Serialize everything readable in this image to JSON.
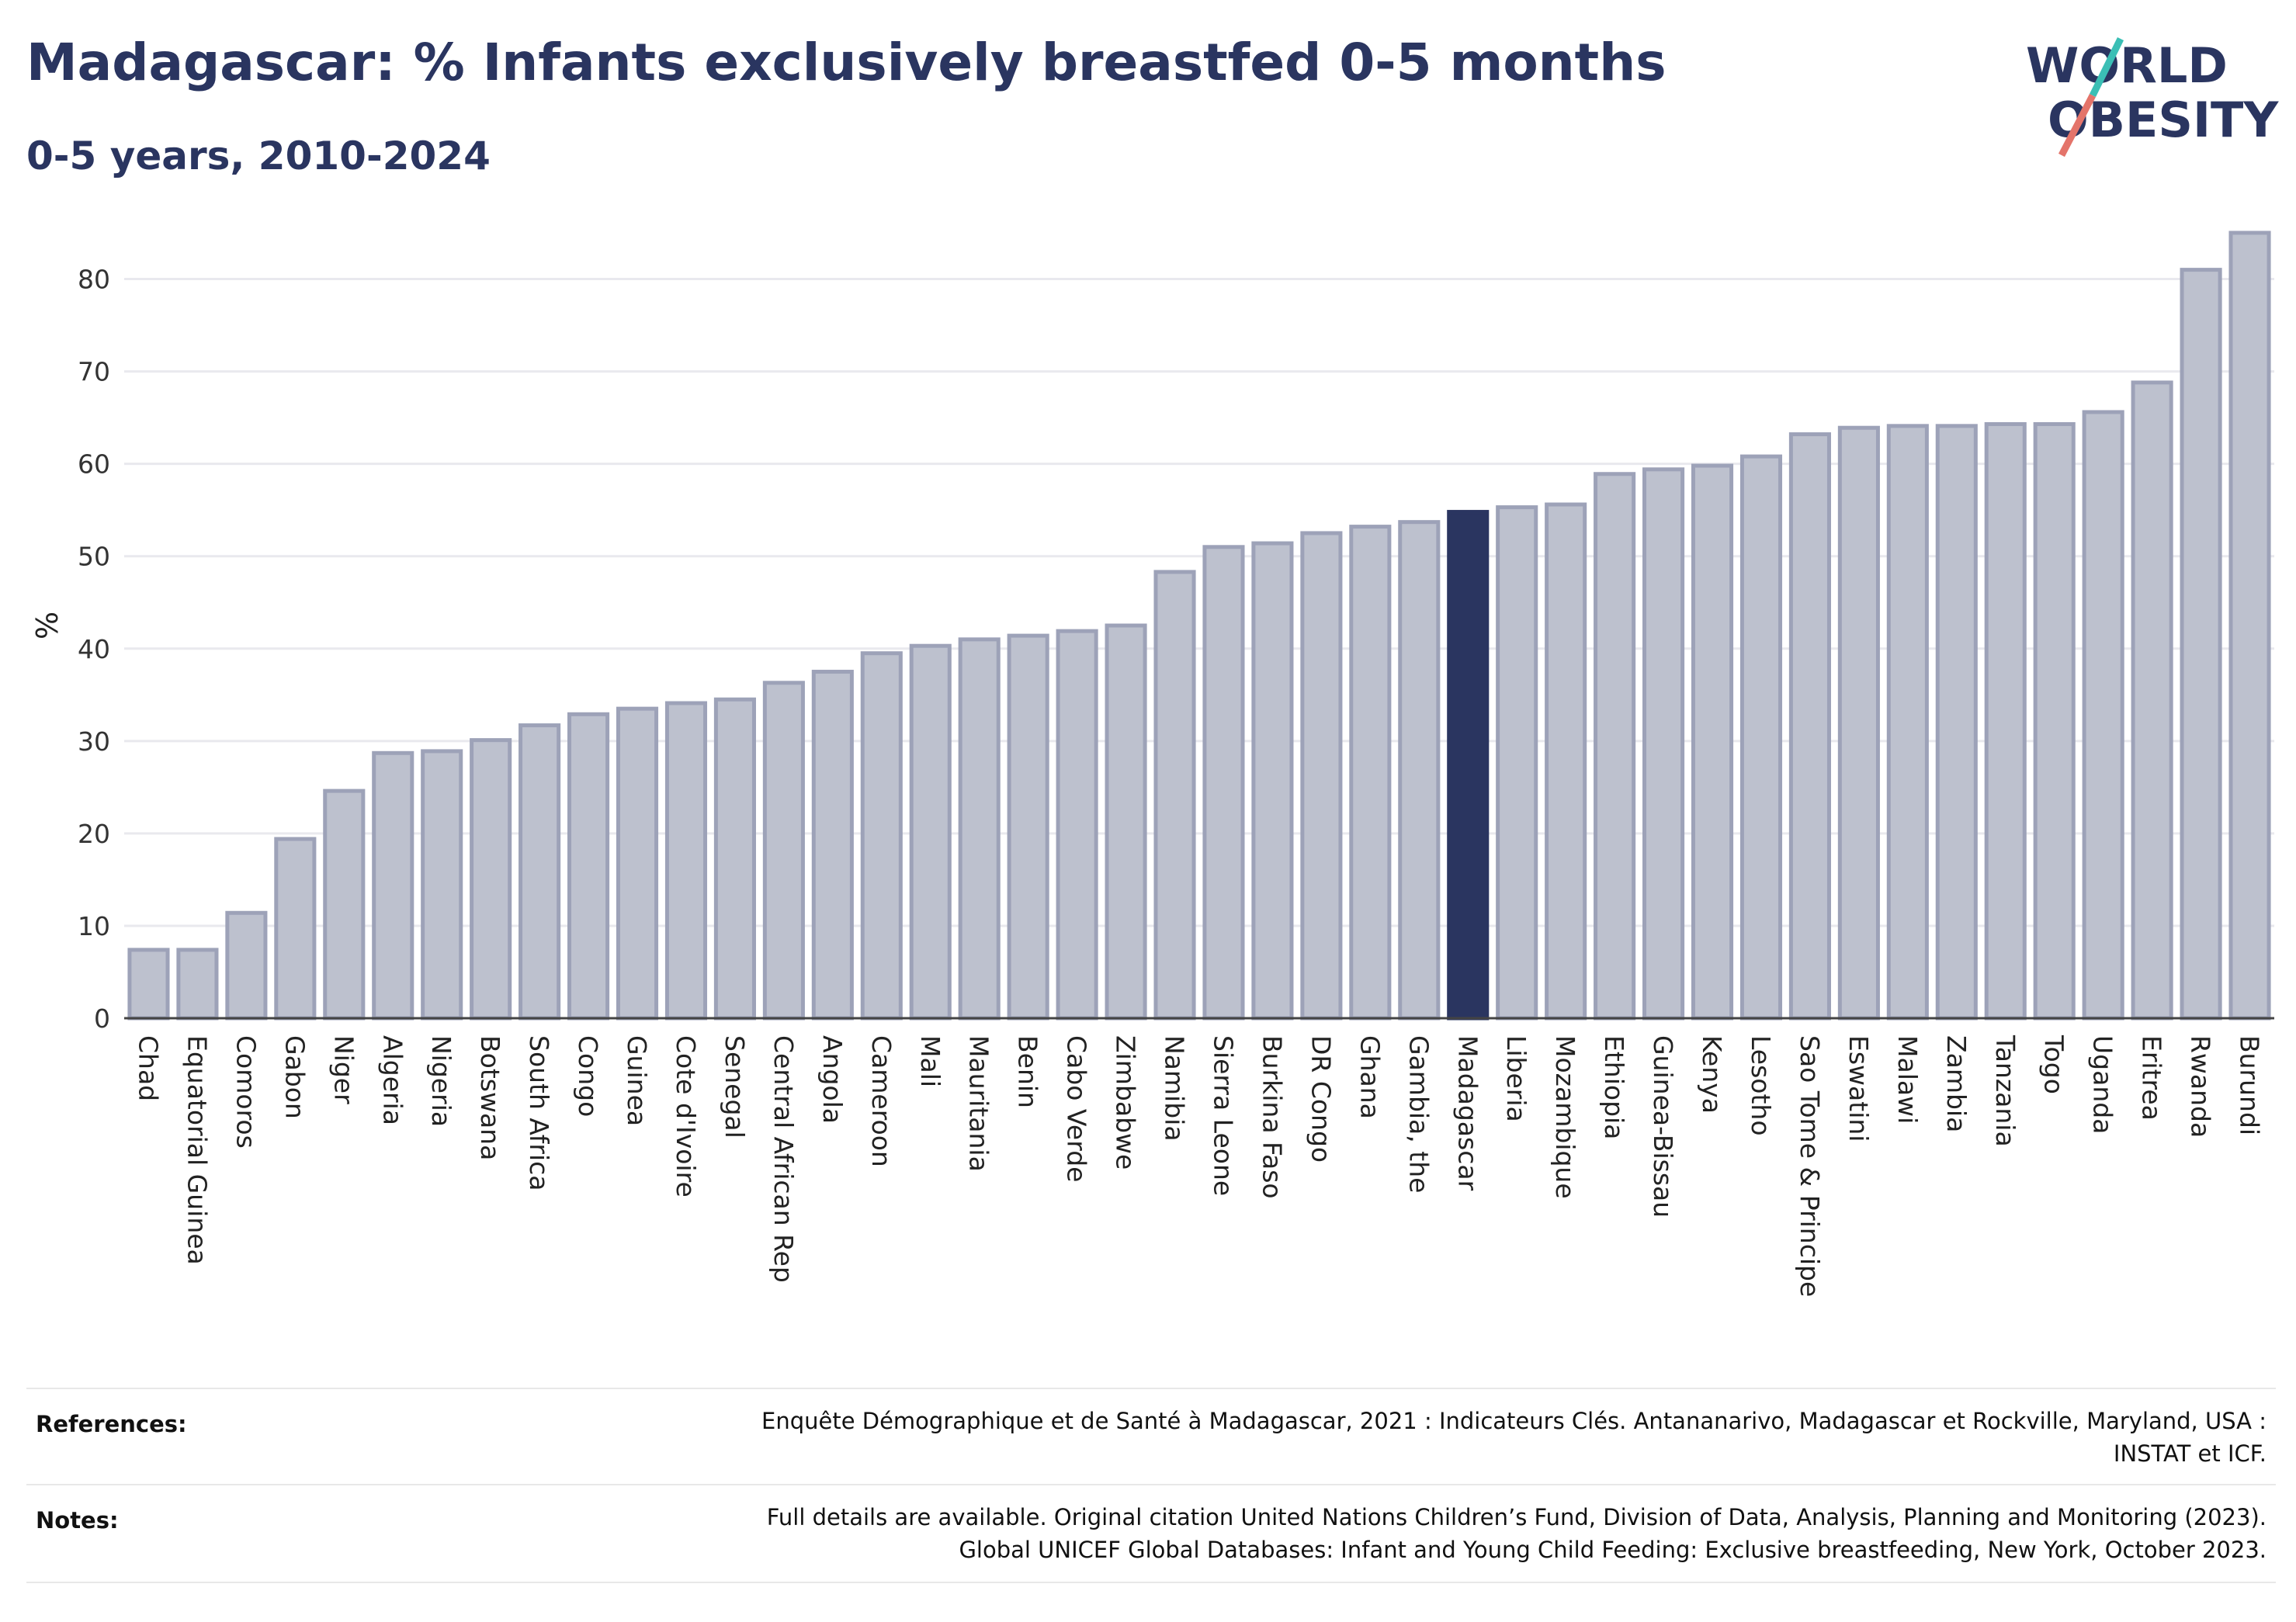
{
  "header": {
    "title": "Madagascar: % Infants exclusively breastfed 0-5 months",
    "subtitle": "0-5 years, 2010-2024"
  },
  "logo": {
    "line1": "WORLD",
    "line2": "OBESITY",
    "accent_teal": "#3bbfb5",
    "accent_red": "#e4746a",
    "text_color": "#2a3560"
  },
  "chart_data": {
    "type": "bar",
    "ylabel": "%",
    "ylim": [
      0,
      85
    ],
    "yticks": [
      0,
      10,
      20,
      30,
      40,
      50,
      60,
      70,
      80
    ],
    "grid": true,
    "highlight": "Madagascar",
    "colors": {
      "bar": "#bdc1ce",
      "bar_edge": "#9da2b8",
      "highlight": "#2a3560"
    },
    "categories": [
      "Chad",
      "Equatorial Guinea",
      "Comoros",
      "Gabon",
      "Niger",
      "Algeria",
      "Nigeria",
      "Botswana",
      "South Africa",
      "Congo",
      "Guinea",
      "Cote d'Ivoire",
      "Senegal",
      "Central African Rep",
      "Angola",
      "Cameroon",
      "Mali",
      "Mauritania",
      "Benin",
      "Cabo Verde",
      "Zimbabwe",
      "Namibia",
      "Sierra Leone",
      "Burkina Faso",
      "DR Congo",
      "Ghana",
      "Gambia, the",
      "Madagascar",
      "Liberia",
      "Mozambique",
      "Ethiopia",
      "Guinea-Bissau",
      "Kenya",
      "Lesotho",
      "Sao Tome & Principe",
      "Eswatini",
      "Malawi",
      "Zambia",
      "Tanzania",
      "Togo",
      "Uganda",
      "Eritrea",
      "Rwanda",
      "Burundi"
    ],
    "values": [
      7.4,
      7.4,
      11.4,
      19.4,
      24.6,
      28.7,
      28.9,
      30.1,
      31.7,
      32.9,
      33.5,
      34.1,
      34.5,
      36.3,
      37.5,
      39.5,
      40.3,
      41.0,
      41.4,
      41.9,
      42.5,
      48.3,
      51.0,
      51.4,
      52.5,
      53.2,
      53.7,
      54.8,
      55.3,
      55.6,
      58.9,
      59.4,
      59.8,
      60.8,
      63.2,
      63.9,
      64.1,
      64.1,
      64.3,
      64.3,
      65.6,
      68.8,
      81.0,
      85.0
    ]
  },
  "footer": {
    "references_label": "References:",
    "references_text": [
      "Enquête Démographique et de Santé à Madagascar, 2021 : Indicateurs Clés. Antananarivo, Madagascar et Rockville, Maryland, USA :",
      "INSTAT et ICF."
    ],
    "notes_label": "Notes:",
    "notes_text": [
      "Full details are available. Original citation United Nations Children’s Fund, Division of Data, Analysis, Planning and Monitoring (2023).",
      "Global UNICEF Global Databases: Infant and Young Child Feeding: Exclusive breastfeeding, New York, October 2023."
    ]
  }
}
